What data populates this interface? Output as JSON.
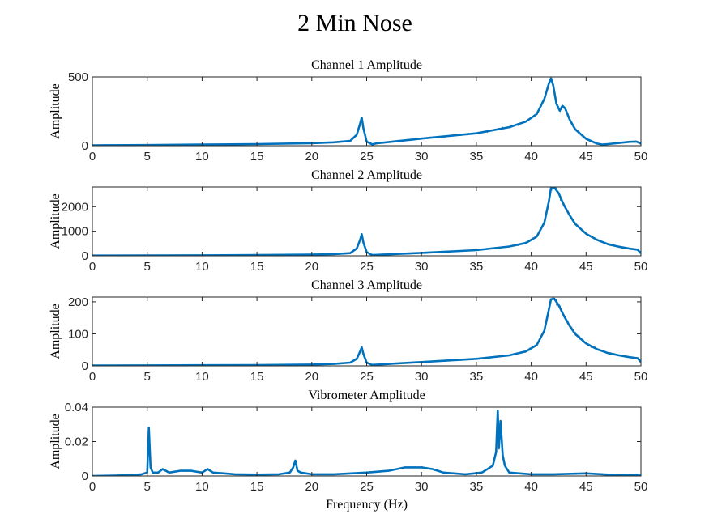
{
  "suptitle": "2 Min Nose",
  "chart_data": [
    {
      "type": "line",
      "title": "Channel 1 Amplitude",
      "xlabel": "",
      "ylabel": "Amplitude",
      "xlim": [
        0,
        50
      ],
      "ylim": [
        0,
        500
      ],
      "xticks": [
        0,
        5,
        10,
        15,
        20,
        25,
        30,
        35,
        40,
        45,
        50
      ],
      "yticks": [
        0,
        500
      ],
      "series": [
        {
          "x": [
            0,
            5,
            10,
            15,
            20,
            22,
            23.5,
            24.1,
            24.4,
            24.55,
            24.7,
            25,
            25.5,
            26,
            28,
            30,
            35,
            38,
            39.5,
            40.5,
            41.2,
            41.6,
            41.8,
            42.0,
            42.3,
            42.6,
            42.85,
            43.1,
            43.5,
            44,
            45,
            46,
            46.5,
            47,
            48,
            49,
            49.6,
            50
          ],
          "y": [
            3,
            5,
            8,
            12,
            18,
            25,
            35,
            80,
            160,
            205,
            130,
            30,
            10,
            18,
            35,
            52,
            90,
            135,
            175,
            230,
            340,
            450,
            490,
            440,
            305,
            255,
            290,
            270,
            190,
            120,
            50,
            15,
            8,
            12,
            20,
            28,
            30,
            15
          ]
        }
      ]
    },
    {
      "type": "line",
      "title": "Channel 2 Amplitude",
      "xlabel": "",
      "ylabel": "Amplitude",
      "xlim": [
        0,
        50
      ],
      "ylim": [
        0,
        2800
      ],
      "xticks": [
        0,
        5,
        10,
        15,
        20,
        25,
        30,
        35,
        40,
        45,
        50
      ],
      "yticks": [
        0,
        1000,
        2000
      ],
      "series": [
        {
          "x": [
            0,
            5,
            10,
            15,
            20,
            22,
            23.5,
            24.1,
            24.4,
            24.55,
            24.7,
            25,
            25.5,
            26,
            28,
            30,
            35,
            38,
            39.5,
            40.5,
            41.2,
            41.6,
            41.8,
            42.1,
            42.5,
            43,
            43.5,
            44,
            45,
            46,
            47,
            48,
            49,
            49.7,
            50
          ],
          "y": [
            10,
            15,
            20,
            30,
            50,
            70,
            110,
            300,
            650,
            880,
            550,
            150,
            30,
            40,
            80,
            120,
            230,
            380,
            520,
            780,
            1350,
            2200,
            2750,
            2780,
            2550,
            2050,
            1650,
            1300,
            900,
            650,
            470,
            370,
            290,
            250,
            100
          ]
        }
      ]
    },
    {
      "type": "line",
      "title": "Channel 3 Amplitude",
      "xlabel": "",
      "ylabel": "Amplitude",
      "xlim": [
        0,
        50
      ],
      "ylim": [
        0,
        215
      ],
      "xticks": [
        0,
        5,
        10,
        15,
        20,
        25,
        30,
        35,
        40,
        45,
        50
      ],
      "yticks": [
        0,
        100,
        200
      ],
      "series": [
        {
          "x": [
            0,
            5,
            10,
            15,
            20,
            22,
            23.5,
            24.1,
            24.4,
            24.55,
            24.7,
            25,
            25.5,
            26,
            28,
            30,
            35,
            38,
            39.5,
            40.5,
            41.2,
            41.6,
            41.8,
            42.1,
            42.5,
            43,
            43.5,
            44,
            45,
            46,
            47,
            48,
            49,
            49.7,
            50
          ],
          "y": [
            1,
            1.5,
            2,
            2.5,
            4,
            6,
            10,
            22,
            45,
            58,
            38,
            10,
            3,
            4,
            8,
            12,
            22,
            33,
            45,
            65,
            110,
            175,
            208,
            210,
            190,
            155,
            125,
            100,
            70,
            52,
            40,
            33,
            27,
            24,
            12
          ]
        }
      ]
    },
    {
      "type": "line",
      "title": "Vibrometer Amplitude",
      "xlabel": "Frequency (Hz)",
      "ylabel": "Amplitude",
      "xlim": [
        0,
        50
      ],
      "ylim": [
        0,
        0.04
      ],
      "xticks": [
        0,
        5,
        10,
        15,
        20,
        25,
        30,
        35,
        40,
        45,
        50
      ],
      "yticks": [
        0,
        0.02,
        0.04
      ],
      "series": [
        {
          "x": [
            0,
            2,
            3.5,
            4.5,
            5.0,
            5.15,
            5.3,
            5.5,
            6,
            6.4,
            7,
            8,
            9,
            10,
            10.5,
            11,
            12,
            13,
            15,
            17,
            18,
            18.3,
            18.5,
            18.7,
            19,
            20,
            22,
            25,
            27,
            28.5,
            30,
            31,
            31.5,
            32,
            34,
            35.5,
            36.5,
            36.8,
            36.95,
            37.05,
            37.2,
            37.4,
            37.6,
            38,
            40,
            42,
            45,
            47,
            50
          ],
          "y": [
            0,
            0.0002,
            0.0005,
            0.001,
            0.002,
            0.028,
            0.005,
            0.002,
            0.002,
            0.004,
            0.002,
            0.003,
            0.003,
            0.002,
            0.004,
            0.002,
            0.0015,
            0.001,
            0.0008,
            0.001,
            0.002,
            0.005,
            0.009,
            0.003,
            0.002,
            0.001,
            0.001,
            0.002,
            0.003,
            0.005,
            0.005,
            0.004,
            0.003,
            0.002,
            0.001,
            0.002,
            0.006,
            0.014,
            0.038,
            0.016,
            0.032,
            0.012,
            0.006,
            0.002,
            0.001,
            0.001,
            0.0015,
            0.0008,
            0.0003
          ]
        }
      ]
    }
  ]
}
